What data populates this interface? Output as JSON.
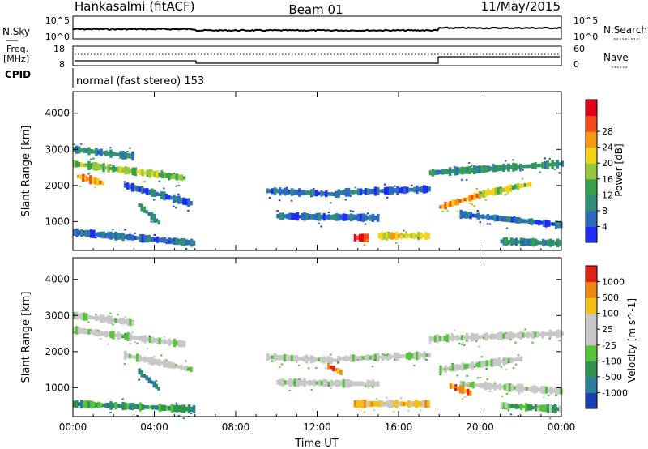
{
  "header": {
    "station": "Hankasalmi (fitACF)",
    "beam": "Beam 01",
    "date": "11/May/2015"
  },
  "status_panel": {
    "nsky_label": "N.Sky",
    "nsearch_label": "N.Search",
    "nsky_ticks": [
      "10^5",
      "10^0"
    ],
    "nsearch_ticks": [
      "10^5",
      "10^0"
    ],
    "freq_label_top": "Freq.",
    "freq_label_bottom": "[MHz]",
    "freq_ticks": [
      "18",
      "8"
    ],
    "nave_label": "Nave",
    "nave_ticks": [
      "60",
      "0"
    ],
    "cpid_label": "CPID",
    "cpid_text": "normal (fast stereo) 153"
  },
  "chart_data": [
    {
      "type": "heatmap",
      "name": "power",
      "ylabel": "Slant Range [km]",
      "ylim": [
        200,
        4600
      ],
      "yticks": [
        1000,
        2000,
        3000,
        4000
      ],
      "x_range_hours": [
        0,
        24
      ],
      "colorbar": {
        "label": "Power [dB]",
        "ticks": [
          "4",
          "8",
          "12",
          "16",
          "20",
          "24",
          "28"
        ],
        "colors": [
          "#1e2cff",
          "#2c6bbd",
          "#2f8e7a",
          "#37a04a",
          "#95c93a",
          "#f6d214",
          "#f79813",
          "#f44a16",
          "#e5001a"
        ]
      },
      "echo_bands": [
        {
          "start": 0.0,
          "end": 5.5,
          "r0": 2600,
          "r1": 2200,
          "c": 4
        },
        {
          "start": 0.0,
          "end": 3.0,
          "r0": 3000,
          "r1": 2800,
          "c": 2
        },
        {
          "start": 0.2,
          "end": 1.5,
          "r0": 2250,
          "r1": 2050,
          "c": 6
        },
        {
          "start": 2.5,
          "end": 5.8,
          "r0": 2000,
          "r1": 1500,
          "c": 1
        },
        {
          "start": 3.2,
          "end": 4.2,
          "r0": 1450,
          "r1": 950,
          "c": 2
        },
        {
          "start": 0.0,
          "end": 6.0,
          "r0": 700,
          "r1": 400,
          "c": 1
        },
        {
          "start": 9.5,
          "end": 13.0,
          "r0": 1850,
          "r1": 1750,
          "c": 1
        },
        {
          "start": 13.0,
          "end": 17.5,
          "r0": 1800,
          "r1": 1900,
          "c": 1
        },
        {
          "start": 10.0,
          "end": 15.0,
          "r0": 1150,
          "r1": 1100,
          "c": 1
        },
        {
          "start": 13.8,
          "end": 14.5,
          "r0": 550,
          "r1": 550,
          "c": 7
        },
        {
          "start": 15.0,
          "end": 17.5,
          "r0": 600,
          "r1": 600,
          "c": 5
        },
        {
          "start": 17.5,
          "end": 24.0,
          "r0": 2350,
          "r1": 2600,
          "c": 2
        },
        {
          "start": 18.0,
          "end": 20.0,
          "r0": 1400,
          "r1": 1750,
          "c": 6
        },
        {
          "start": 20.0,
          "end": 22.5,
          "r0": 1750,
          "r1": 2050,
          "c": 4
        },
        {
          "start": 19.0,
          "end": 24.0,
          "r0": 1200,
          "r1": 900,
          "c": 1
        },
        {
          "start": 21.0,
          "end": 24.0,
          "r0": 450,
          "r1": 400,
          "c": 2
        }
      ]
    },
    {
      "type": "heatmap",
      "name": "velocity",
      "ylabel": "Slant Range [km]",
      "xlabel": "Time UT",
      "ylim": [
        200,
        4600
      ],
      "yticks": [
        1000,
        2000,
        3000,
        4000
      ],
      "xticks": [
        "00:00",
        "04:00",
        "08:00",
        "12:00",
        "16:00",
        "20:00",
        "00:00"
      ],
      "colorbar": {
        "label": "Velocity [m s^-1]",
        "ticks": [
          "1000",
          "500",
          "100",
          "25",
          "-25",
          "-100",
          "-500",
          "-1000"
        ],
        "colors": [
          "#1a3fb5",
          "#2a7e9c",
          "#2f9450",
          "#57c33a",
          "#c8c8c8",
          "#c8c8c8",
          "#f5c014",
          "#f0860f",
          "#e02414"
        ]
      },
      "echo_bands": [
        {
          "start": 0.0,
          "end": 5.5,
          "r0": 2600,
          "r1": 2200,
          "c": 4
        },
        {
          "start": 0.0,
          "end": 3.0,
          "r0": 3000,
          "r1": 2800,
          "c": 4
        },
        {
          "start": 2.5,
          "end": 5.8,
          "r0": 1900,
          "r1": 1500,
          "c": 4
        },
        {
          "start": 3.2,
          "end": 4.2,
          "r0": 1450,
          "r1": 950,
          "c": 1
        },
        {
          "start": 0.0,
          "end": 6.0,
          "r0": 550,
          "r1": 400,
          "c": 2
        },
        {
          "start": 9.5,
          "end": 13.0,
          "r0": 1850,
          "r1": 1750,
          "c": 4
        },
        {
          "start": 13.0,
          "end": 17.5,
          "r0": 1800,
          "r1": 1900,
          "c": 4
        },
        {
          "start": 10.0,
          "end": 15.0,
          "r0": 1150,
          "r1": 1100,
          "c": 4
        },
        {
          "start": 12.5,
          "end": 13.2,
          "r0": 1600,
          "r1": 1400,
          "c": 7
        },
        {
          "start": 13.8,
          "end": 17.5,
          "r0": 550,
          "r1": 550,
          "c": 6
        },
        {
          "start": 17.5,
          "end": 24.0,
          "r0": 2350,
          "r1": 2500,
          "c": 4
        },
        {
          "start": 18.0,
          "end": 22.0,
          "r0": 1500,
          "r1": 1800,
          "c": 4
        },
        {
          "start": 19.0,
          "end": 24.0,
          "r0": 1100,
          "r1": 900,
          "c": 4
        },
        {
          "start": 21.0,
          "end": 24.0,
          "r0": 500,
          "r1": 400,
          "c": 3
        },
        {
          "start": 18.5,
          "end": 19.5,
          "r0": 1050,
          "r1": 850,
          "c": 7
        }
      ]
    }
  ]
}
